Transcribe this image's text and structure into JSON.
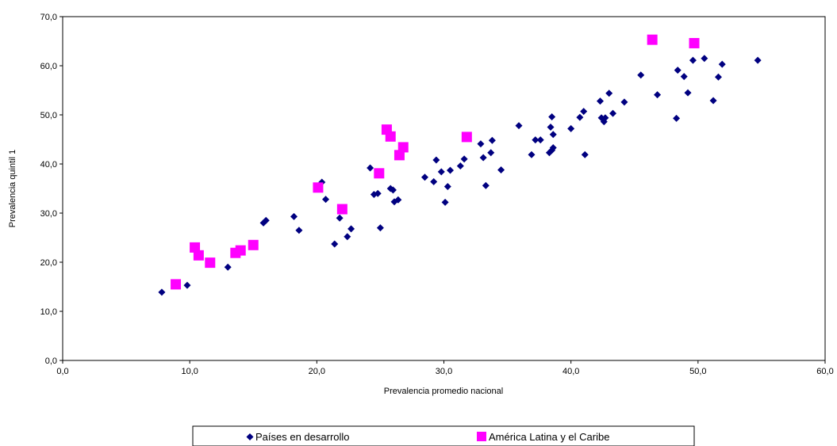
{
  "chart_data": {
    "type": "scatter",
    "title": "",
    "xlabel": "Prevalencia promedio nacional",
    "ylabel": "Prevalencia quintil 1",
    "xlim": [
      0,
      60
    ],
    "ylim": [
      0,
      70
    ],
    "x_ticks": [
      "0,0",
      "10,0",
      "20,0",
      "30,0",
      "40,0",
      "50,0",
      "60,0"
    ],
    "y_ticks": [
      "0,0",
      "10,0",
      "20,0",
      "30,0",
      "40,0",
      "50,0",
      "60,0",
      "70,0"
    ],
    "grid": false,
    "legend_position": "bottom",
    "series": [
      {
        "name": "Países en desarrollo",
        "marker": "diamond",
        "color": "#000080",
        "points": [
          [
            7.8,
            13.9
          ],
          [
            9.8,
            15.3
          ],
          [
            13.0,
            19.0
          ],
          [
            15.8,
            28.0
          ],
          [
            16.0,
            28.5
          ],
          [
            18.2,
            29.3
          ],
          [
            18.6,
            26.5
          ],
          [
            20.4,
            36.3
          ],
          [
            20.7,
            32.8
          ],
          [
            21.4,
            23.7
          ],
          [
            21.8,
            29.0
          ],
          [
            22.4,
            25.2
          ],
          [
            22.7,
            26.8
          ],
          [
            24.2,
            39.2
          ],
          [
            24.5,
            33.8
          ],
          [
            24.8,
            34.0
          ],
          [
            25.0,
            27.0
          ],
          [
            25.8,
            35.0
          ],
          [
            26.0,
            34.7
          ],
          [
            26.1,
            32.3
          ],
          [
            26.4,
            32.7
          ],
          [
            28.5,
            37.3
          ],
          [
            29.2,
            36.4
          ],
          [
            29.4,
            40.8
          ],
          [
            29.8,
            38.4
          ],
          [
            30.1,
            32.2
          ],
          [
            30.3,
            35.4
          ],
          [
            30.5,
            38.7
          ],
          [
            31.3,
            39.6
          ],
          [
            31.6,
            41.0
          ],
          [
            32.9,
            44.1
          ],
          [
            33.1,
            41.3
          ],
          [
            33.3,
            35.6
          ],
          [
            33.7,
            42.3
          ],
          [
            33.8,
            44.8
          ],
          [
            34.5,
            38.8
          ],
          [
            35.9,
            47.8
          ],
          [
            36.9,
            41.9
          ],
          [
            37.2,
            44.9
          ],
          [
            37.6,
            44.9
          ],
          [
            38.3,
            42.3
          ],
          [
            38.4,
            47.5
          ],
          [
            38.5,
            49.6
          ],
          [
            38.5,
            42.8
          ],
          [
            38.6,
            46.0
          ],
          [
            38.6,
            43.3
          ],
          [
            40.0,
            47.2
          ],
          [
            40.7,
            49.5
          ],
          [
            41.0,
            50.7
          ],
          [
            41.1,
            41.9
          ],
          [
            42.3,
            52.8
          ],
          [
            42.4,
            49.4
          ],
          [
            42.6,
            48.6
          ],
          [
            42.7,
            49.4
          ],
          [
            43.0,
            54.4
          ],
          [
            43.3,
            50.3
          ],
          [
            44.2,
            52.6
          ],
          [
            45.5,
            58.1
          ],
          [
            46.8,
            54.1
          ],
          [
            48.3,
            49.3
          ],
          [
            48.4,
            59.1
          ],
          [
            48.9,
            57.8
          ],
          [
            49.2,
            54.5
          ],
          [
            49.6,
            61.1
          ],
          [
            50.5,
            61.5
          ],
          [
            51.2,
            52.9
          ],
          [
            51.6,
            57.7
          ],
          [
            51.9,
            60.3
          ],
          [
            54.7,
            61.1
          ]
        ]
      },
      {
        "name": "América Latina y el Caribe",
        "marker": "square",
        "color": "#ff00ff",
        "points": [
          [
            8.9,
            15.5
          ],
          [
            10.4,
            23.0
          ],
          [
            10.7,
            21.4
          ],
          [
            11.6,
            19.9
          ],
          [
            13.6,
            21.9
          ],
          [
            14.0,
            22.4
          ],
          [
            15.0,
            23.5
          ],
          [
            20.1,
            35.2
          ],
          [
            22.0,
            30.8
          ],
          [
            24.9,
            38.1
          ],
          [
            25.5,
            47.0
          ],
          [
            25.8,
            45.6
          ],
          [
            26.5,
            41.8
          ],
          [
            26.8,
            43.4
          ],
          [
            31.8,
            45.5
          ],
          [
            46.4,
            65.3
          ],
          [
            49.7,
            64.6
          ]
        ]
      }
    ]
  }
}
